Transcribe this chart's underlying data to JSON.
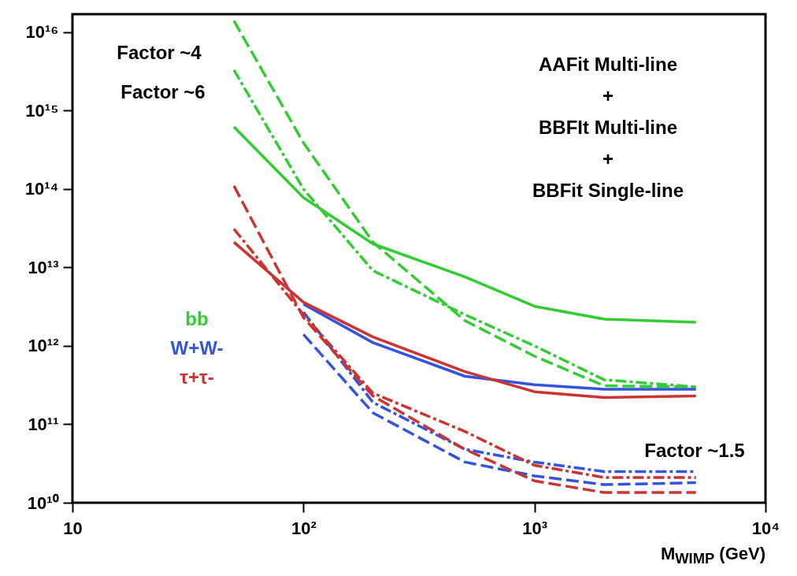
{
  "chart_data": {
    "type": "line",
    "xlabel": "M$_{WIMP}$ (GeV)",
    "log": "xy",
    "xlim": [
      10,
      10000
    ],
    "ylim": [
      10000000000.0,
      1.7e+16
    ],
    "xticks": [
      10,
      {
        "value": 100,
        "label": "10²"
      },
      {
        "value": 1000,
        "label": "10³"
      },
      {
        "value": 10000,
        "label": "10⁴"
      }
    ],
    "yticks": [
      {
        "value": 10000000000.0,
        "label": "10¹⁰"
      },
      {
        "value": 100000000000.0,
        "label": "10¹¹"
      },
      {
        "value": 1000000000000.0,
        "label": "10¹²"
      },
      {
        "value": 10000000000000.0,
        "label": "10¹³"
      },
      {
        "value": 100000000000000.0,
        "label": "10¹⁴"
      },
      {
        "value": 1000000000000000.0,
        "label": "10¹⁵"
      },
      {
        "value": 1e+16,
        "label": "10¹⁶"
      }
    ],
    "series": [
      {
        "name": "bb",
        "color": "#33cc33",
        "line_style": "solid",
        "x": [
          50,
          100,
          200,
          500,
          1000,
          2000,
          5000
        ],
        "values": [
          620000000000000.0,
          78000000000000.0,
          20000000000000.0,
          7600000000000.0,
          3200000000000.0,
          2200000000000.0,
          2000000000000.0
        ]
      },
      {
        "color": "#33cc33",
        "line_style": "dashed",
        "x": [
          50,
          100,
          200,
          500,
          1000,
          2000,
          5000
        ],
        "values": [
          1.4e+16,
          390000000000000.0,
          21000000000000.0,
          2100000000000.0,
          740000000000.0,
          310000000000.0,
          300000000000.0
        ]
      },
      {
        "color": "#33cc33",
        "line_style": "dashdot",
        "x": [
          50,
          100,
          200,
          500,
          1000,
          2000,
          5000
        ],
        "values": [
          3300000000000000.0,
          100000000000000.0,
          9100000000000.0,
          2500000000000.0,
          1000000000000.0,
          370000000000.0,
          300000000000.0
        ]
      },
      {
        "name": "W+W-",
        "color": "#3355dd",
        "line_style": "solid",
        "x": [
          100,
          200,
          500,
          1000,
          2000,
          5000
        ],
        "values": [
          3400000000000.0,
          1100000000000.0,
          410000000000.0,
          320000000000.0,
          280000000000.0,
          280000000000.0
        ]
      },
      {
        "color": "#3355dd",
        "line_style": "dashed",
        "x": [
          100,
          200,
          500,
          1000,
          2000,
          5000
        ],
        "values": [
          1400000000000.0,
          140000000000.0,
          33000000000.0,
          22000000000.0,
          17000000000.0,
          18000000000.0
        ]
      },
      {
        "color": "#3355dd",
        "line_style": "dashdot",
        "x": [
          100,
          200,
          500,
          1000,
          2000,
          5000
        ],
        "values": [
          2700000000000.0,
          190000000000.0,
          48000000000.0,
          33000000000.0,
          25000000000.0,
          25000000000.0
        ]
      },
      {
        "name": "τ+τ-",
        "color": "#cc3333",
        "line_style": "solid",
        "x": [
          50,
          100,
          200,
          500,
          1000,
          2000,
          5000
        ],
        "values": [
          21000000000000.0,
          3600000000000.0,
          1300000000000.0,
          470000000000.0,
          260000000000.0,
          220000000000.0,
          230000000000.0
        ]
      },
      {
        "color": "#cc3333",
        "line_style": "dashed",
        "x": [
          50,
          100,
          200,
          500,
          1000,
          2000,
          5000
        ],
        "values": [
          110000000000000.0,
          2300000000000.0,
          230000000000.0,
          48000000000.0,
          19000000000.0,
          13500000000.0,
          13500000000.0
        ]
      },
      {
        "color": "#cc3333",
        "line_style": "dashdot",
        "x": [
          50,
          100,
          200,
          500,
          1000,
          2000,
          5000
        ],
        "values": [
          31000000000000.0,
          2500000000000.0,
          250000000000.0,
          81000000000.0,
          30000000000.0,
          21000000000.0,
          21000000000.0
        ]
      }
    ],
    "annotations": [
      "Factor ~4",
      "Factor ~6",
      "Factor ~1.5",
      "AAFit Multi-line",
      "+",
      "BBFIt Multi-line",
      "+",
      "BBFit Single-line"
    ]
  }
}
